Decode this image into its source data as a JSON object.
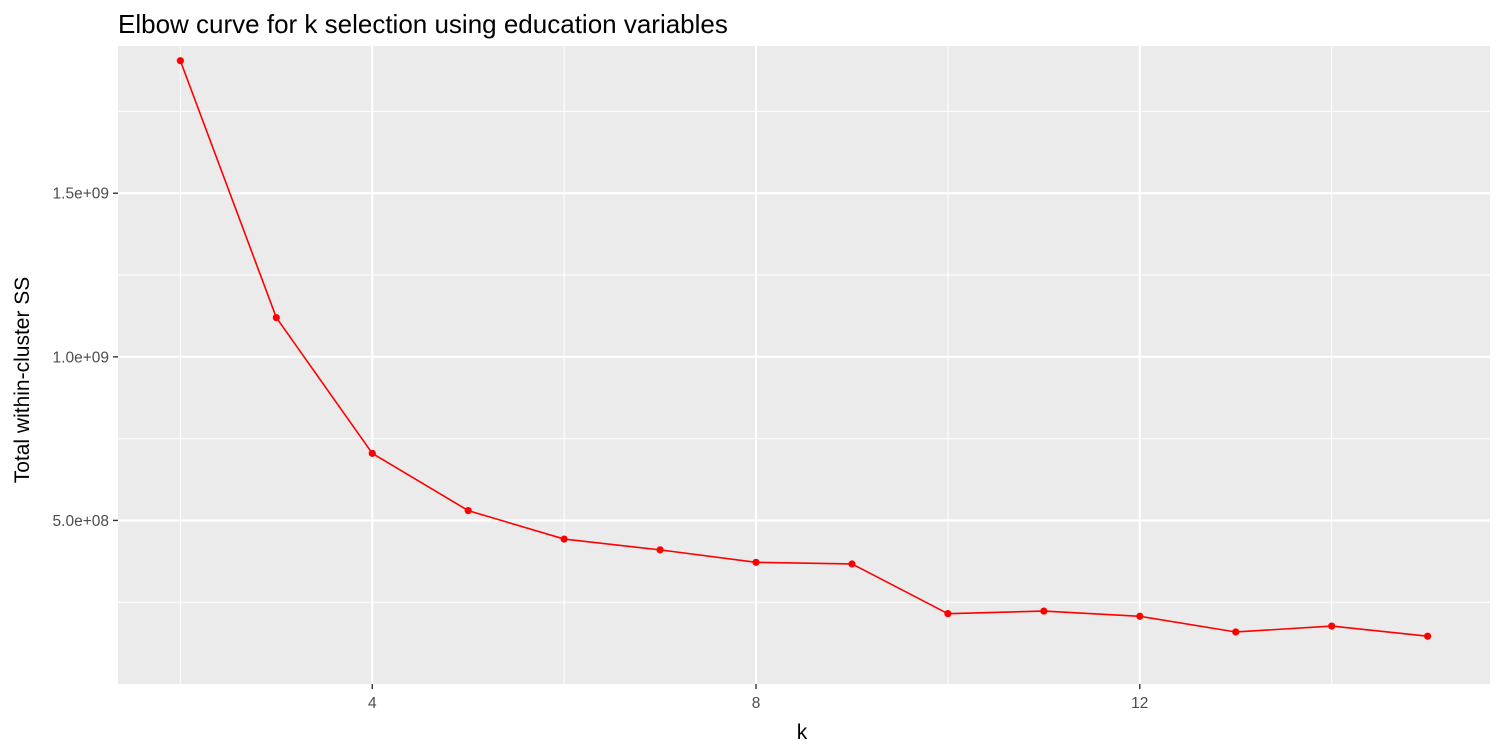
{
  "chart_data": {
    "type": "line",
    "title": "Elbow curve for k selection using education variables",
    "xlabel": "k",
    "ylabel": "Total within-cluster SS",
    "xlim": [
      1.35,
      15.65
    ],
    "ylim": [
      0,
      1950000000
    ],
    "x_ticks": [
      4,
      8,
      12
    ],
    "x_tick_labels": [
      "4",
      "8",
      "12"
    ],
    "y_ticks": [
      500000000,
      1000000000,
      1500000000
    ],
    "y_tick_labels": [
      "5.0e+08",
      "1.0e+09",
      "1.5e+09"
    ],
    "grid": true,
    "panel_background": "#ebebeb",
    "grid_color": "#ffffff",
    "series": [
      {
        "color": "#ff0000",
        "x": [
          2,
          3,
          4,
          5,
          6,
          7,
          8,
          9,
          10,
          11,
          12,
          13,
          14,
          15
        ],
        "y": [
          1905000000,
          1120000000,
          705000000,
          530000000,
          443000000,
          410000000,
          372000000,
          367000000,
          215000000,
          223000000,
          207000000,
          159000000,
          177000000,
          146000000
        ]
      }
    ]
  }
}
